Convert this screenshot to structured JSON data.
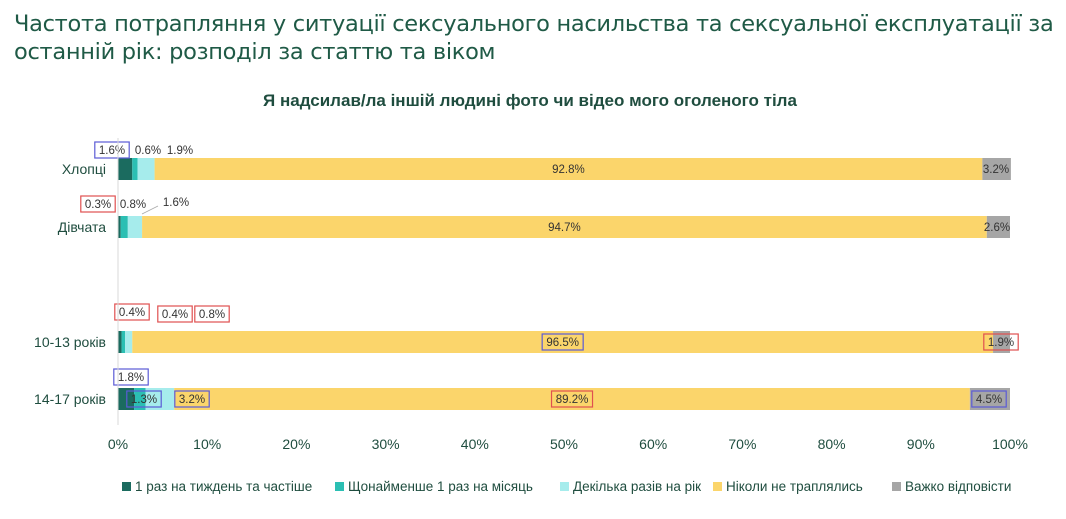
{
  "page": {
    "title": "Частота потрапляння у ситуації сексуального насильства та сексуальної експлуатації за останній рік: розподіл за статтю та віком"
  },
  "chart_data": {
    "type": "bar",
    "orientation": "horizontal",
    "stacked": "100%",
    "title": "Я надсилав/ла іншій людині фото чи відео мого оголеного тіла",
    "xlim": [
      0,
      100
    ],
    "x_ticks": [
      "0%",
      "10%",
      "20%",
      "30%",
      "40%",
      "50%",
      "60%",
      "70%",
      "80%",
      "90%",
      "100%"
    ],
    "categories": [
      "Хлопці",
      "Дівчата",
      "10-13 років",
      "14-17 років"
    ],
    "series": [
      {
        "name": "1 раз на тиждень та частіше",
        "color": "#1b6b5f",
        "values": [
          1.6,
          0.3,
          0.4,
          1.8
        ]
      },
      {
        "name": "Щонайменше 1 раз на місяць",
        "color": "#2bbfb3",
        "values": [
          0.6,
          0.8,
          0.4,
          1.3
        ]
      },
      {
        "name": "Декілька разів на рік",
        "color": "#a6ecec",
        "values": [
          1.9,
          1.6,
          0.8,
          3.2
        ]
      },
      {
        "name": "Ніколи не траплялись",
        "color": "#fbd56b",
        "values": [
          92.8,
          94.7,
          96.5,
          89.2
        ]
      },
      {
        "name": "Важко відповісти",
        "color": "#a6a6a6",
        "values": [
          3.2,
          2.6,
          1.9,
          4.5
        ]
      }
    ],
    "data_labels": [
      [
        "1.6%",
        "0.6%",
        "1.9%",
        "92.8%",
        "3.2%"
      ],
      [
        "0.3%",
        "0.8%",
        "1.6%",
        "94.7%",
        "2.6%"
      ],
      [
        "0.4%",
        "0.4%",
        "0.8%",
        "96.5%",
        "1.9%"
      ],
      [
        "1.8%",
        "1.3%",
        "3.2%",
        "89.2%",
        "4.5%"
      ]
    ],
    "legend_position": "bottom",
    "grid": false
  }
}
